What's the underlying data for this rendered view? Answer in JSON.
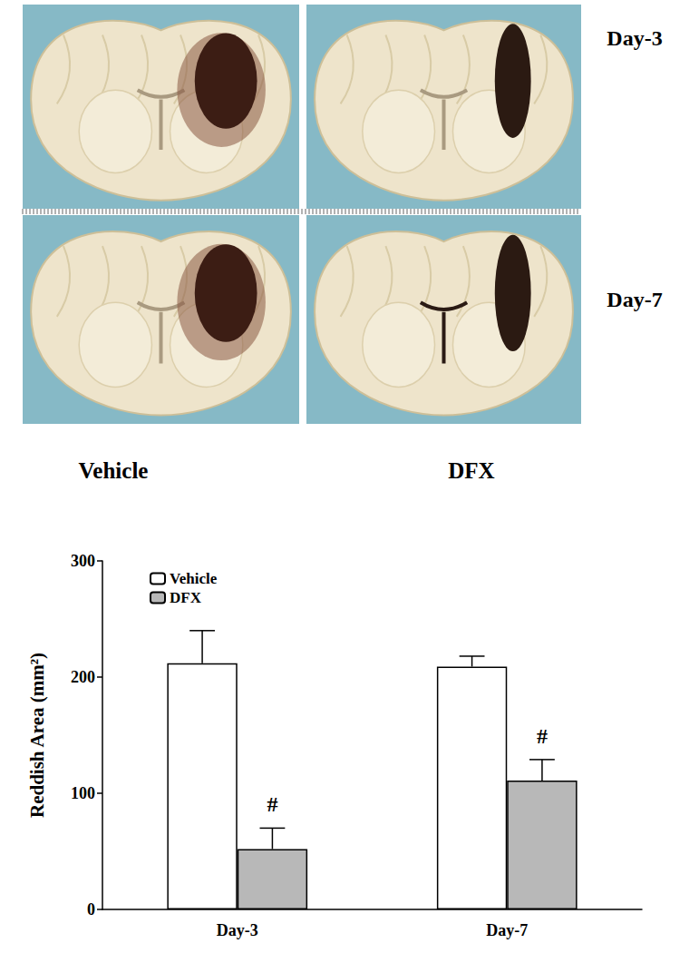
{
  "chart_data": {
    "type": "bar",
    "categories": [
      "Day-3",
      "Day-7"
    ],
    "series": [
      {
        "name": "Vehicle",
        "color": "#ffffff",
        "values": [
          212,
          209
        ],
        "errors": [
          28,
          9
        ]
      },
      {
        "name": "DFX",
        "color": "#b8b8b8",
        "values": [
          52,
          111
        ],
        "errors": [
          18,
          18
        ]
      }
    ],
    "y_label": "Reddish Area (mm²)",
    "ylim": [
      0,
      300
    ],
    "yticks": [
      0,
      100,
      200,
      300
    ],
    "grid": false,
    "legend": "top-left",
    "annotations": [
      {
        "text": "#",
        "category": "Day-3",
        "series": "DFX"
      },
      {
        "text": "#",
        "category": "Day-7",
        "series": "DFX"
      }
    ]
  },
  "photo_panel": {
    "columns": [
      "Vehicle",
      "DFX"
    ],
    "rows": [
      "Day-3",
      "Day-7"
    ]
  }
}
